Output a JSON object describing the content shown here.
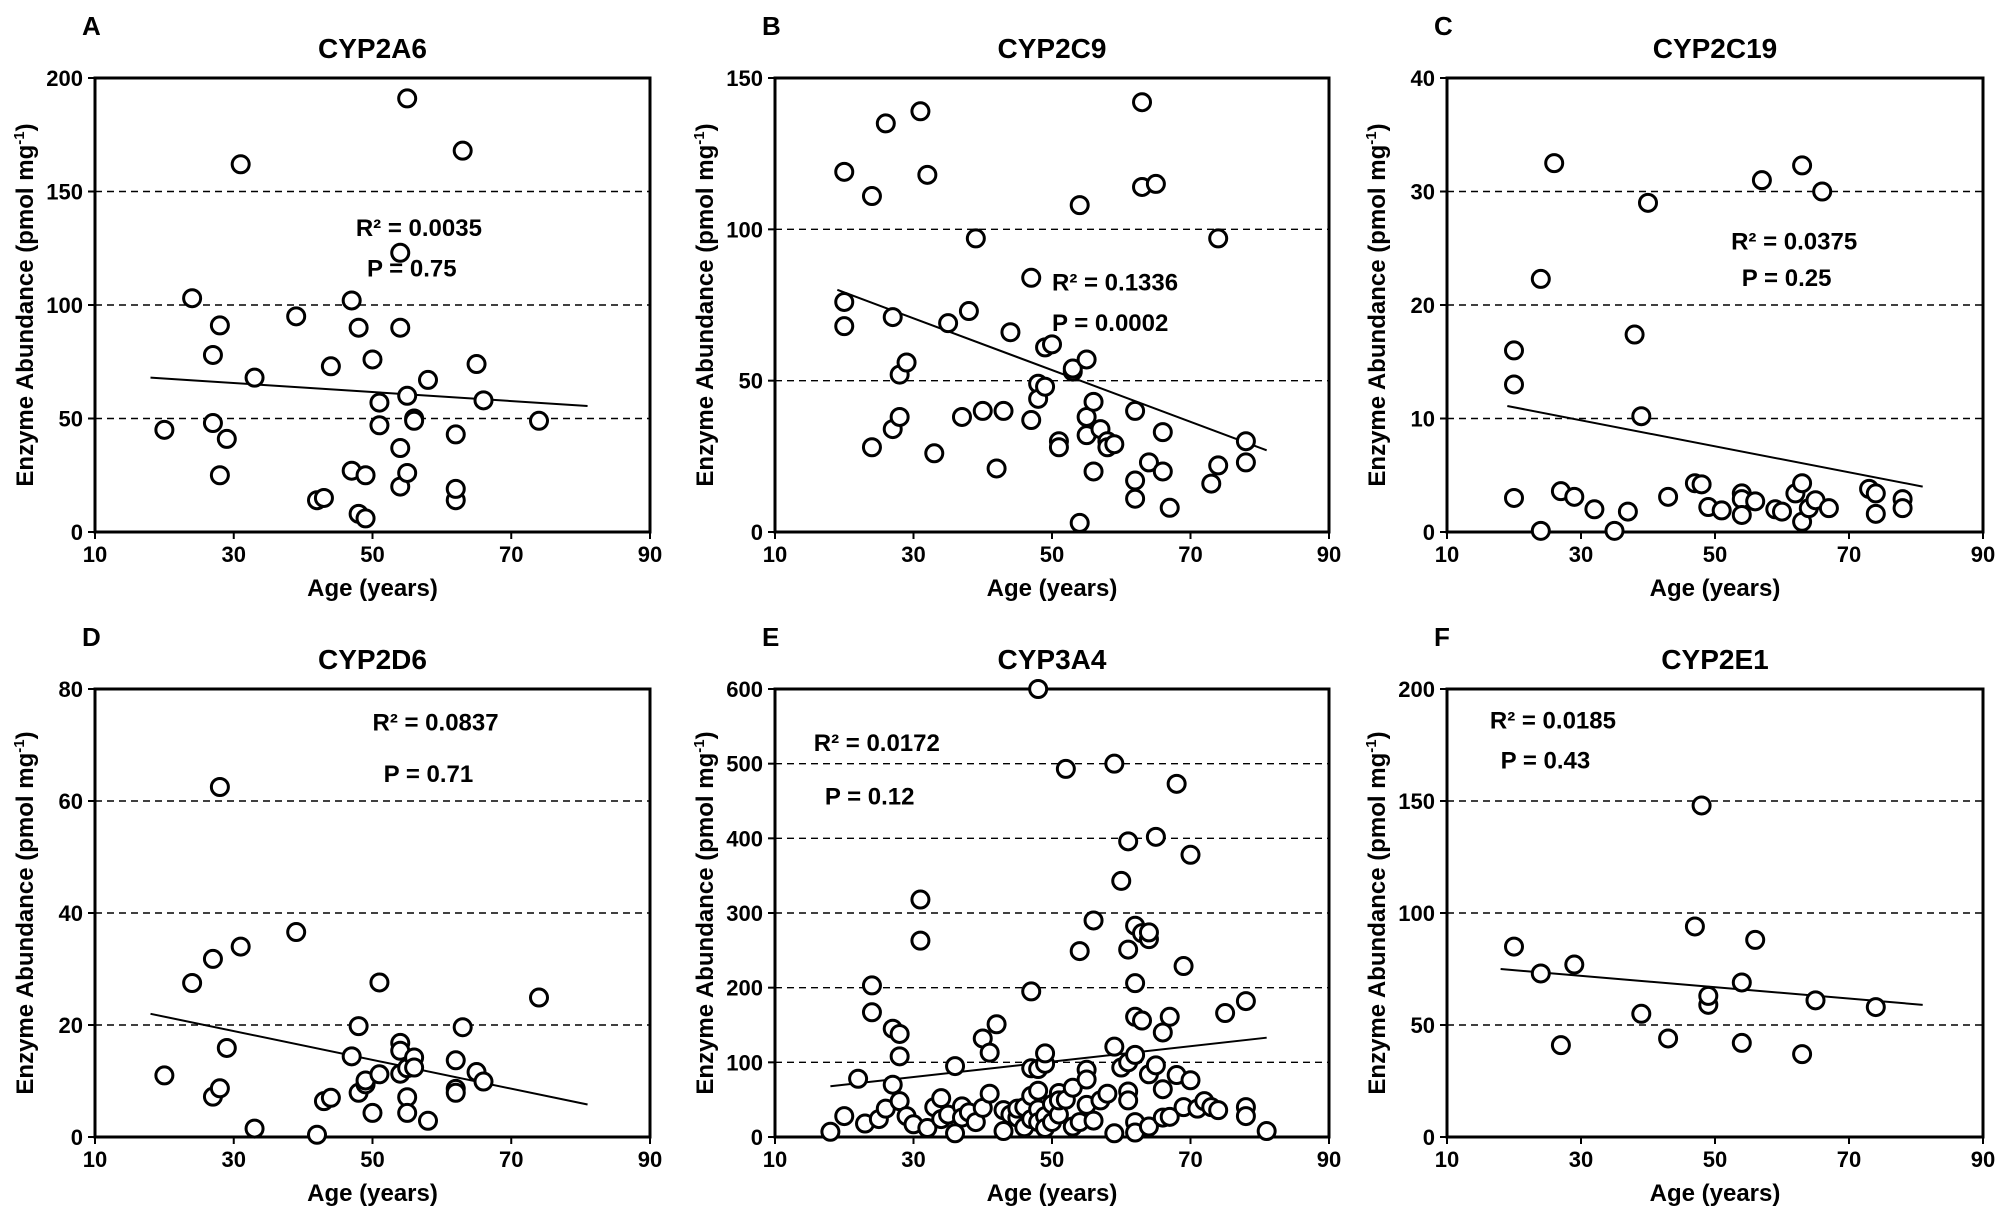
{
  "chart_data": [
    {
      "panel": "A",
      "type": "scatter",
      "title": "CYP2A6",
      "xlabel": "Age (years)",
      "ylabel": "Enzyme Abundance (pmol mg-1)",
      "xlim": [
        10,
        90
      ],
      "ylim": [
        0,
        200
      ],
      "xticks": [
        10,
        30,
        50,
        70,
        90
      ],
      "yticks": [
        0,
        50,
        100,
        150,
        200
      ],
      "grid": "dashed horizontal",
      "annotations": [
        "R² = 0.0035",
        "P = 0.75"
      ],
      "trendline": [
        [
          18,
          68
        ],
        [
          81,
          55.5
        ]
      ],
      "points": [
        [
          20,
          45
        ],
        [
          24,
          103
        ],
        [
          27,
          78
        ],
        [
          27,
          48
        ],
        [
          28,
          91
        ],
        [
          28,
          25
        ],
        [
          29,
          41
        ],
        [
          31,
          162
        ],
        [
          33,
          68
        ],
        [
          39,
          95
        ],
        [
          42,
          14
        ],
        [
          43,
          15
        ],
        [
          44,
          73
        ],
        [
          47,
          102
        ],
        [
          47,
          27
        ],
        [
          48,
          8
        ],
        [
          48,
          90
        ],
        [
          49,
          25
        ],
        [
          49,
          6
        ],
        [
          50,
          76
        ],
        [
          51,
          47
        ],
        [
          51,
          57
        ],
        [
          54,
          123
        ],
        [
          54,
          90
        ],
        [
          54,
          37
        ],
        [
          54,
          20
        ],
        [
          55,
          60
        ],
        [
          55,
          26
        ],
        [
          55,
          191
        ],
        [
          56,
          50
        ],
        [
          56,
          49
        ],
        [
          58,
          67
        ],
        [
          62,
          43
        ],
        [
          62,
          14
        ],
        [
          62,
          19
        ],
        [
          63,
          168
        ],
        [
          65,
          74
        ],
        [
          66,
          58
        ],
        [
          74,
          49
        ]
      ]
    },
    {
      "panel": "B",
      "type": "scatter",
      "title": "CYP2C9",
      "xlabel": "Age (years)",
      "ylabel": "Enzyme Abundance (pmol mg-1)",
      "xlim": [
        10,
        90
      ],
      "ylim": [
        0,
        150
      ],
      "xticks": [
        10,
        30,
        50,
        70,
        90
      ],
      "yticks": [
        0,
        50,
        100,
        150
      ],
      "grid": "dashed horizontal",
      "annotations": [
        "R² = 0.1336",
        "P = 0.0002"
      ],
      "trendline": [
        [
          19,
          80
        ],
        [
          81,
          27
        ]
      ],
      "points": [
        [
          20,
          119
        ],
        [
          20,
          76
        ],
        [
          20,
          68
        ],
        [
          24,
          111
        ],
        [
          24,
          28
        ],
        [
          26,
          135
        ],
        [
          27,
          71
        ],
        [
          27,
          34
        ],
        [
          28,
          52
        ],
        [
          28,
          38
        ],
        [
          29,
          56
        ],
        [
          31,
          139
        ],
        [
          32,
          118
        ],
        [
          33,
          26
        ],
        [
          35,
          69
        ],
        [
          37,
          38
        ],
        [
          38,
          73
        ],
        [
          39,
          97
        ],
        [
          40,
          40
        ],
        [
          42,
          21
        ],
        [
          43,
          40
        ],
        [
          44,
          66
        ],
        [
          47,
          84
        ],
        [
          47,
          37
        ],
        [
          48,
          49
        ],
        [
          48,
          44
        ],
        [
          49,
          48
        ],
        [
          49,
          61
        ],
        [
          50,
          62
        ],
        [
          51,
          30
        ],
        [
          51,
          28
        ],
        [
          53,
          53
        ],
        [
          53,
          54
        ],
        [
          54,
          3
        ],
        [
          54,
          108
        ],
        [
          55,
          57
        ],
        [
          55,
          38
        ],
        [
          55,
          32
        ],
        [
          56,
          43
        ],
        [
          56,
          20
        ],
        [
          57,
          34
        ],
        [
          58,
          30
        ],
        [
          58,
          28
        ],
        [
          59,
          29
        ],
        [
          62,
          17
        ],
        [
          62,
          11
        ],
        [
          62,
          40
        ],
        [
          63,
          114
        ],
        [
          63,
          142
        ],
        [
          64,
          23
        ],
        [
          65,
          115
        ],
        [
          66,
          20
        ],
        [
          66,
          33
        ],
        [
          67,
          8
        ],
        [
          73,
          16
        ],
        [
          74,
          97
        ],
        [
          74,
          22
        ],
        [
          78,
          23
        ],
        [
          78,
          30
        ]
      ]
    },
    {
      "panel": "C",
      "type": "scatter",
      "title": "CYP2C19",
      "xlabel": "Age (years)",
      "ylabel": "Enzyme Abundance (pmol mg-1)",
      "xlim": [
        10,
        90
      ],
      "ylim": [
        0,
        40
      ],
      "xticks": [
        10,
        30,
        50,
        70,
        90
      ],
      "yticks": [
        0,
        10,
        20,
        30,
        40
      ],
      "grid": "dashed horizontal",
      "annotations": [
        "R² = 0.0375",
        "P = 0.25"
      ],
      "trendline": [
        [
          19,
          11.1
        ],
        [
          81,
          4.0
        ]
      ],
      "points": [
        [
          20,
          16
        ],
        [
          20,
          13
        ],
        [
          20,
          3
        ],
        [
          24,
          22.3
        ],
        [
          24,
          0.1
        ],
        [
          26,
          32.5
        ],
        [
          27,
          3.6
        ],
        [
          29,
          3.1
        ],
        [
          32,
          2
        ],
        [
          35,
          0.1
        ],
        [
          37,
          1.8
        ],
        [
          38,
          17.4
        ],
        [
          39,
          10.2
        ],
        [
          40,
          29
        ],
        [
          43,
          3.1
        ],
        [
          47,
          4.3
        ],
        [
          48,
          4.2
        ],
        [
          49,
          2.2
        ],
        [
          51,
          1.9
        ],
        [
          54,
          3.4
        ],
        [
          54,
          2.9
        ],
        [
          54,
          1.5
        ],
        [
          56,
          2.7
        ],
        [
          57,
          31
        ],
        [
          59,
          2
        ],
        [
          60,
          1.8
        ],
        [
          62,
          3.4
        ],
        [
          63,
          4.3
        ],
        [
          63,
          32.3
        ],
        [
          63,
          0.9
        ],
        [
          64,
          2.1
        ],
        [
          65,
          2.8
        ],
        [
          66,
          30
        ],
        [
          67,
          2.1
        ],
        [
          73,
          3.8
        ],
        [
          74,
          3.4
        ],
        [
          74,
          1.6
        ],
        [
          78,
          2.9
        ],
        [
          78,
          2.1
        ]
      ]
    },
    {
      "panel": "D",
      "type": "scatter",
      "title": "CYP2D6",
      "xlabel": "Age (years)",
      "ylabel": "Enzyme Abundance (pmol mg-1)",
      "xlim": [
        10,
        90
      ],
      "ylim": [
        0,
        80
      ],
      "xticks": [
        10,
        30,
        50,
        70,
        90
      ],
      "yticks": [
        0,
        20,
        40,
        60,
        80
      ],
      "grid": "dashed horizontal",
      "annotations": [
        "R² = 0.0837",
        "P = 0.71"
      ],
      "trendline": [
        [
          18,
          22
        ],
        [
          81,
          5.8
        ]
      ],
      "points": [
        [
          20,
          11
        ],
        [
          24,
          27.5
        ],
        [
          27,
          31.8
        ],
        [
          27,
          7.2
        ],
        [
          28,
          62.5
        ],
        [
          28,
          8.7
        ],
        [
          29,
          15.9
        ],
        [
          31,
          34
        ],
        [
          33,
          1.5
        ],
        [
          39,
          36.6
        ],
        [
          42,
          0.4
        ],
        [
          43,
          6.4
        ],
        [
          44,
          7
        ],
        [
          47,
          14.4
        ],
        [
          48,
          19.8
        ],
        [
          48,
          7.9
        ],
        [
          49,
          9.4
        ],
        [
          49,
          10.1
        ],
        [
          50,
          4.3
        ],
        [
          51,
          27.6
        ],
        [
          51,
          11.2
        ],
        [
          54,
          16.8
        ],
        [
          54,
          15.4
        ],
        [
          54,
          11.3
        ],
        [
          55,
          12.3
        ],
        [
          55,
          7.1
        ],
        [
          55,
          4.3
        ],
        [
          56,
          14.2
        ],
        [
          56,
          12.4
        ],
        [
          58,
          2.9
        ],
        [
          62,
          13.7
        ],
        [
          62,
          8.6
        ],
        [
          62,
          7.9
        ],
        [
          63,
          19.6
        ],
        [
          65,
          11.6
        ],
        [
          66,
          9.9
        ],
        [
          74,
          24.9
        ]
      ]
    },
    {
      "panel": "E",
      "type": "scatter",
      "title": "CYP3A4",
      "xlabel": "Age (years)",
      "ylabel": "Enzyme Abundance (pmol mg-1)",
      "xlim": [
        10,
        90
      ],
      "ylim": [
        0,
        600
      ],
      "xticks": [
        10,
        30,
        50,
        70,
        90
      ],
      "yticks": [
        0,
        100,
        200,
        300,
        400,
        500,
        600
      ],
      "grid": "dashed horizontal",
      "annotations": [
        "R² = 0.0172",
        "P = 0.12"
      ],
      "trendline": [
        [
          18,
          68
        ],
        [
          81,
          133
        ]
      ],
      "points": [
        [
          18,
          7
        ],
        [
          20,
          28
        ],
        [
          22,
          78
        ],
        [
          23,
          18
        ],
        [
          24,
          203
        ],
        [
          24,
          167
        ],
        [
          25,
          24
        ],
        [
          26,
          38
        ],
        [
          27,
          70
        ],
        [
          27,
          145
        ],
        [
          28,
          138
        ],
        [
          28,
          108
        ],
        [
          28,
          48
        ],
        [
          29,
          28
        ],
        [
          30,
          17
        ],
        [
          31,
          318
        ],
        [
          31,
          263
        ],
        [
          32,
          12
        ],
        [
          33,
          40
        ],
        [
          34,
          24
        ],
        [
          34,
          52
        ],
        [
          35,
          30
        ],
        [
          36,
          95
        ],
        [
          36,
          5
        ],
        [
          37,
          41
        ],
        [
          37,
          26
        ],
        [
          38,
          33
        ],
        [
          39,
          20
        ],
        [
          40,
          132
        ],
        [
          40,
          39
        ],
        [
          41,
          113
        ],
        [
          41,
          58
        ],
        [
          42,
          151
        ],
        [
          43,
          36
        ],
        [
          43,
          8
        ],
        [
          44,
          30
        ],
        [
          45,
          26
        ],
        [
          45,
          38
        ],
        [
          46,
          13
        ],
        [
          46,
          40
        ],
        [
          47,
          195
        ],
        [
          47,
          92
        ],
        [
          47,
          55
        ],
        [
          47,
          24
        ],
        [
          48,
          91
        ],
        [
          48,
          62
        ],
        [
          48,
          37
        ],
        [
          48,
          20
        ],
        [
          48,
          600
        ],
        [
          49,
          98
        ],
        [
          49,
          112
        ],
        [
          49,
          28
        ],
        [
          49,
          12
        ],
        [
          50,
          44
        ],
        [
          50,
          20
        ],
        [
          51,
          30
        ],
        [
          51,
          59
        ],
        [
          51,
          49
        ],
        [
          52,
          493
        ],
        [
          52,
          50
        ],
        [
          53,
          14
        ],
        [
          53,
          66
        ],
        [
          54,
          249
        ],
        [
          54,
          20
        ],
        [
          55,
          90
        ],
        [
          55,
          77
        ],
        [
          55,
          43
        ],
        [
          56,
          290
        ],
        [
          56,
          22
        ],
        [
          57,
          49
        ],
        [
          58,
          58
        ],
        [
          59,
          500
        ],
        [
          59,
          5
        ],
        [
          59,
          121
        ],
        [
          60,
          343
        ],
        [
          60,
          93
        ],
        [
          61,
          396
        ],
        [
          61,
          251
        ],
        [
          61,
          100
        ],
        [
          61,
          61
        ],
        [
          61,
          49
        ],
        [
          62,
          206
        ],
        [
          62,
          161
        ],
        [
          62,
          283
        ],
        [
          62,
          110
        ],
        [
          62,
          20
        ],
        [
          62,
          6
        ],
        [
          63,
          156
        ],
        [
          63,
          273
        ],
        [
          64,
          265
        ],
        [
          64,
          274
        ],
        [
          64,
          84
        ],
        [
          64,
          14
        ],
        [
          65,
          402
        ],
        [
          65,
          96
        ],
        [
          66,
          140
        ],
        [
          66,
          64
        ],
        [
          66,
          26
        ],
        [
          67,
          161
        ],
        [
          67,
          27
        ],
        [
          68,
          473
        ],
        [
          68,
          83
        ],
        [
          69,
          229
        ],
        [
          69,
          40
        ],
        [
          70,
          378
        ],
        [
          70,
          76
        ],
        [
          71,
          38
        ],
        [
          72,
          48
        ],
        [
          73,
          40
        ],
        [
          74,
          36
        ],
        [
          75,
          166
        ],
        [
          78,
          182
        ],
        [
          78,
          40
        ],
        [
          78,
          28
        ],
        [
          81,
          8
        ]
      ]
    },
    {
      "panel": "F",
      "type": "scatter",
      "title": "CYP2E1",
      "xlabel": "Age (years)",
      "ylabel": "Enzyme Abundance (pmol mg-1)",
      "xlim": [
        10,
        90
      ],
      "ylim": [
        0,
        200
      ],
      "xticks": [
        10,
        30,
        50,
        70,
        90
      ],
      "yticks": [
        0,
        50,
        100,
        150,
        200
      ],
      "grid": "dashed horizontal",
      "annotations": [
        "R² = 0.0185",
        "P = 0.43"
      ],
      "trendline": [
        [
          18,
          75
        ],
        [
          81,
          59
        ]
      ],
      "points": [
        [
          20,
          85
        ],
        [
          24,
          73
        ],
        [
          27,
          41
        ],
        [
          29,
          77
        ],
        [
          39,
          55
        ],
        [
          43,
          44
        ],
        [
          47,
          94
        ],
        [
          48,
          148
        ],
        [
          49,
          59
        ],
        [
          49,
          63
        ],
        [
          54,
          69
        ],
        [
          54,
          42
        ],
        [
          56,
          88
        ],
        [
          63,
          37
        ],
        [
          65,
          61
        ],
        [
          74,
          58
        ]
      ]
    }
  ]
}
